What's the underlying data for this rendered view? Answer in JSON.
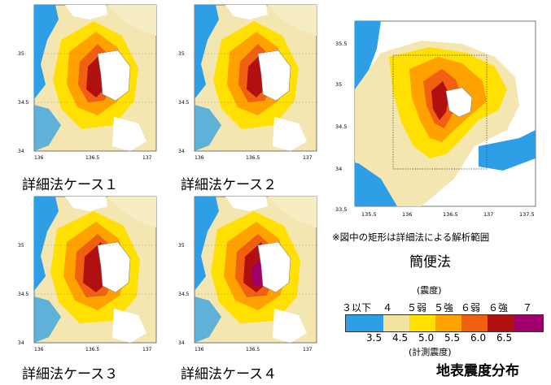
{
  "panels": [
    {
      "caption": "詳細法ケース１"
    },
    {
      "caption": "詳細法ケース２"
    },
    {
      "caption": "詳細法ケース３"
    },
    {
      "caption": "詳細法ケース４"
    }
  ],
  "small_axis": {
    "y_labels": [
      "35",
      "34.5",
      "34"
    ],
    "x_labels": [
      "136",
      "136.5",
      "137"
    ]
  },
  "simple_map": {
    "y_labels": [
      "35.5",
      "35",
      "34.5",
      "34",
      "33.5"
    ],
    "x_labels": [
      "135.5",
      "136",
      "136.5",
      "137",
      "137.5"
    ],
    "note": "※図中の矩形は詳細法による解析範囲",
    "caption": "簡便法"
  },
  "legend": {
    "title": "(震度)",
    "classes": [
      "３以下",
      "４",
      "５弱",
      "５強",
      "６弱",
      "６強",
      "７"
    ],
    "ticks": [
      "3.5",
      "4.5",
      "5.0",
      "5.5",
      "6.0",
      "6.5"
    ],
    "subtitle": "(計測震度)",
    "colors": [
      "#2e9fe6",
      "#f3e3a0",
      "#ffe000",
      "#ffa200",
      "#f06010",
      "#b01010",
      "#a0006a"
    ]
  },
  "title": "地表震度分布"
}
